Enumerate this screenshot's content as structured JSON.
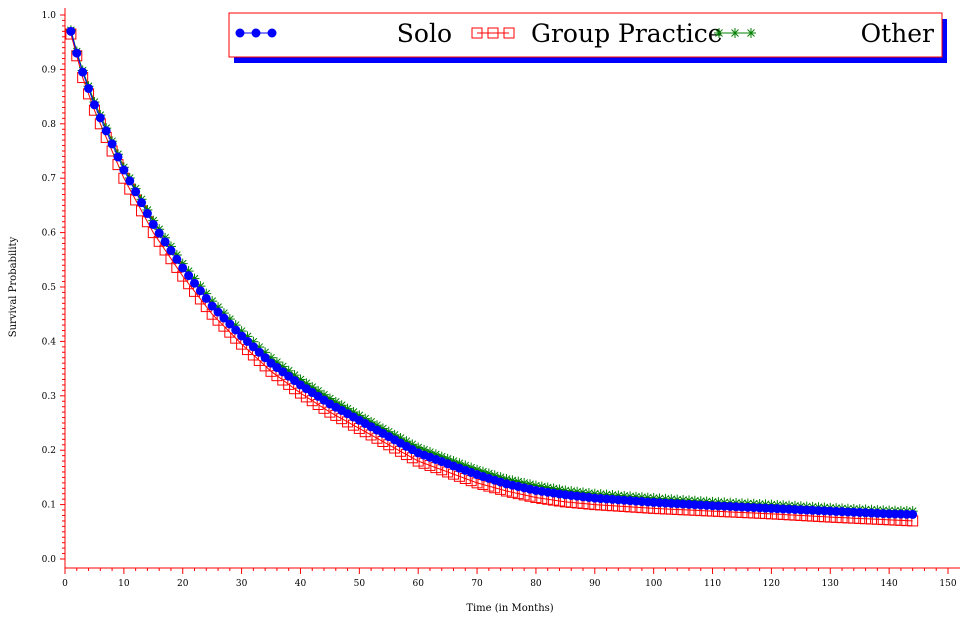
{
  "chart_data": {
    "type": "line",
    "title": "",
    "xlabel": "Time (in Months)",
    "ylabel": "Survival Probability",
    "xlim": [
      0,
      150
    ],
    "ylim": [
      0.0,
      1.0
    ],
    "x_ticks": [
      0,
      10,
      20,
      30,
      40,
      50,
      60,
      70,
      80,
      90,
      100,
      110,
      120,
      130,
      140,
      150
    ],
    "y_ticks": [
      "0.0",
      "0.1",
      "0.2",
      "0.3",
      "0.4",
      "0.5",
      "0.6",
      "0.7",
      "0.8",
      "0.9",
      "1.0"
    ],
    "grid": false,
    "legend_position": "top",
    "x_start": 1,
    "x_end": 144,
    "series": [
      {
        "name": "Solo",
        "marker": "circle",
        "color": "#0000ff",
        "knots": [
          [
            1,
            0.97
          ],
          [
            2,
            0.93
          ],
          [
            3,
            0.895
          ],
          [
            5,
            0.835
          ],
          [
            10,
            0.715
          ],
          [
            15,
            0.615
          ],
          [
            20,
            0.535
          ],
          [
            25,
            0.465
          ],
          [
            30,
            0.41
          ],
          [
            35,
            0.36
          ],
          [
            40,
            0.32
          ],
          [
            45,
            0.285
          ],
          [
            50,
            0.255
          ],
          [
            55,
            0.225
          ],
          [
            60,
            0.195
          ],
          [
            65,
            0.175
          ],
          [
            70,
            0.155
          ],
          [
            75,
            0.138
          ],
          [
            80,
            0.126
          ],
          [
            85,
            0.118
          ],
          [
            90,
            0.112
          ],
          [
            100,
            0.104
          ],
          [
            110,
            0.098
          ],
          [
            120,
            0.093
          ],
          [
            130,
            0.088
          ],
          [
            140,
            0.083
          ],
          [
            144,
            0.082
          ]
        ]
      },
      {
        "name": "Group Practice",
        "marker": "square",
        "color": "#ff0000",
        "knots": [
          [
            1,
            0.965
          ],
          [
            2,
            0.925
          ],
          [
            3,
            0.885
          ],
          [
            5,
            0.825
          ],
          [
            10,
            0.7
          ],
          [
            15,
            0.6
          ],
          [
            20,
            0.52
          ],
          [
            25,
            0.45
          ],
          [
            30,
            0.395
          ],
          [
            35,
            0.345
          ],
          [
            40,
            0.305
          ],
          [
            45,
            0.27
          ],
          [
            50,
            0.24
          ],
          [
            55,
            0.21
          ],
          [
            60,
            0.18
          ],
          [
            65,
            0.16
          ],
          [
            70,
            0.14
          ],
          [
            75,
            0.125
          ],
          [
            80,
            0.113
          ],
          [
            85,
            0.105
          ],
          [
            90,
            0.1
          ],
          [
            100,
            0.093
          ],
          [
            110,
            0.088
          ],
          [
            120,
            0.083
          ],
          [
            130,
            0.077
          ],
          [
            140,
            0.072
          ],
          [
            144,
            0.07
          ]
        ]
      },
      {
        "name": "Other",
        "marker": "star",
        "color": "#008000",
        "knots": [
          [
            1,
            0.972
          ],
          [
            2,
            0.933
          ],
          [
            3,
            0.898
          ],
          [
            5,
            0.84
          ],
          [
            10,
            0.72
          ],
          [
            15,
            0.622
          ],
          [
            20,
            0.543
          ],
          [
            25,
            0.474
          ],
          [
            30,
            0.419
          ],
          [
            35,
            0.37
          ],
          [
            40,
            0.33
          ],
          [
            45,
            0.295
          ],
          [
            50,
            0.264
          ],
          [
            55,
            0.234
          ],
          [
            60,
            0.205
          ],
          [
            65,
            0.184
          ],
          [
            70,
            0.164
          ],
          [
            75,
            0.147
          ],
          [
            80,
            0.135
          ],
          [
            85,
            0.126
          ],
          [
            90,
            0.12
          ],
          [
            100,
            0.112
          ],
          [
            110,
            0.105
          ],
          [
            120,
            0.1
          ],
          [
            130,
            0.094
          ],
          [
            140,
            0.089
          ],
          [
            144,
            0.088
          ]
        ]
      }
    ]
  }
}
